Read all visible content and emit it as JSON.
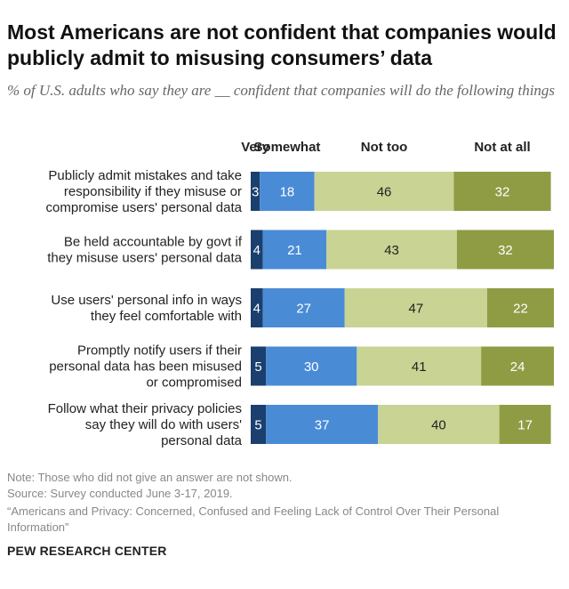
{
  "title": "Most Americans are not confident that companies would publicly admit to misusing consumers’ data",
  "subtitle": "% of U.S. adults who say they are __ confident that companies will do the following things",
  "chart_data": {
    "type": "bar",
    "orientation": "horizontal",
    "stacked": true,
    "categories": [
      [
        "Publicly admit mistakes and take",
        "responsibility if they misuse or",
        "compromise users' personal data"
      ],
      [
        "Be held accountable by govt if",
        "they misuse users' personal data"
      ],
      [
        "Use users' personal info in ways",
        "they feel comfortable with"
      ],
      [
        "Promptly notify users if their",
        "personal data has been misused",
        "or compromised"
      ],
      [
        "Follow what their privacy policies",
        "say they will do with users'",
        "personal data"
      ]
    ],
    "series": [
      {
        "name": "Very",
        "color": "#1b3f6e",
        "label_color": "#ffffff",
        "values": [
          3,
          4,
          4,
          5,
          5
        ]
      },
      {
        "name": "Somewhat",
        "color": "#4a8bd6",
        "label_color": "#ffffff",
        "values": [
          18,
          21,
          27,
          30,
          37
        ]
      },
      {
        "name": "Not too",
        "color": "#c9d393",
        "label_color": "#222222",
        "values": [
          46,
          43,
          47,
          41,
          40
        ]
      },
      {
        "name": "Not at all",
        "color": "#8f9c44",
        "label_color": "#ffffff",
        "values": [
          32,
          32,
          22,
          24,
          17
        ]
      }
    ],
    "xlim": [
      0,
      100
    ],
    "xlabel": "",
    "ylabel": "",
    "legend": "top"
  },
  "footer": {
    "note": "Note: Those who did not give an answer are not shown.",
    "source": "Source: Survey conducted June 3-17, 2019.",
    "report": "“Americans and Privacy: Concerned, Confused and Feeling Lack of Control Over Their Personal Information”",
    "org": "PEW RESEARCH CENTER"
  }
}
